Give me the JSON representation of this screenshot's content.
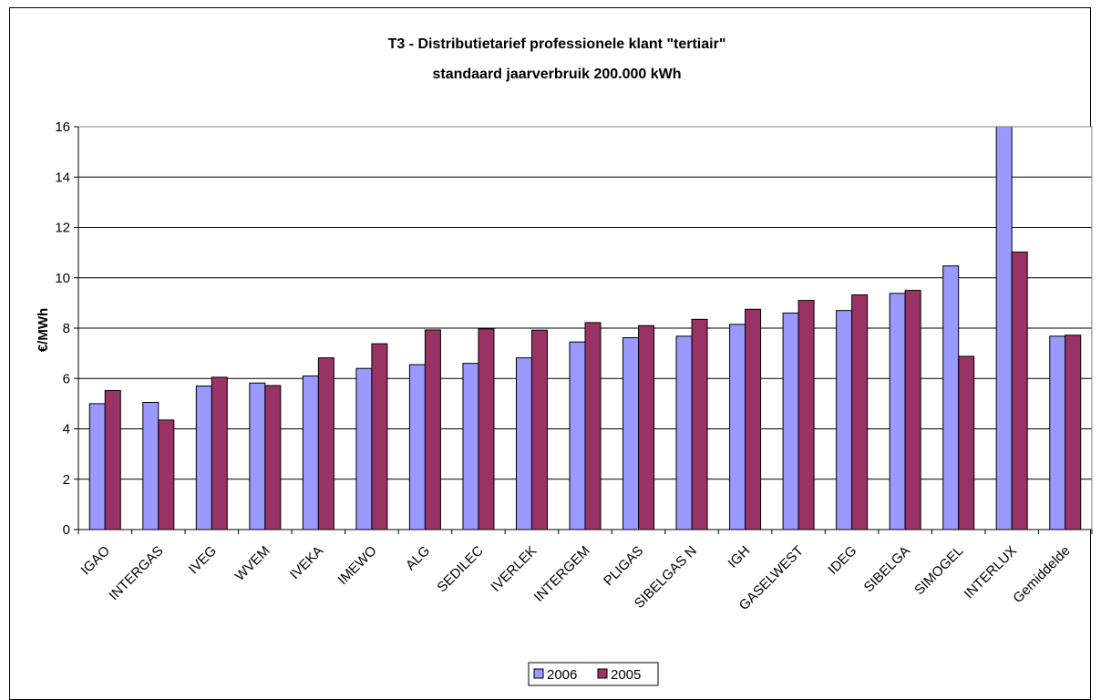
{
  "chart_data": {
    "type": "bar",
    "title": "T3 - Distributietarief professionele klant  \"tertiair\"",
    "subtitle": "standaard jaarverbruik 200.000 kWh",
    "ylabel": "€/MWh",
    "xlabel": "",
    "ylim": [
      0,
      16
    ],
    "yticks": [
      "0",
      "2",
      "4",
      "6",
      "8",
      "10",
      "12",
      "14",
      "16"
    ],
    "grid": true,
    "legend_position": "bottom",
    "categories": [
      "IGAO",
      "INTERGAS",
      "IVEG",
      "WVEM",
      "IVEKA",
      "IMEWO",
      "ALG",
      "SEDILEC",
      "IVERLEK",
      "INTERGEM",
      "PLIGAS",
      "SIBELGAS N",
      "IGH",
      "GASELWEST",
      "IDEG",
      "SIBELGA",
      "SIMOGEL",
      "INTERLUX",
      "Gemiddelde"
    ],
    "series": [
      {
        "name": "2006",
        "color": "#9999FF",
        "values": [
          5.0,
          5.05,
          5.7,
          5.82,
          6.1,
          6.4,
          6.55,
          6.6,
          6.82,
          7.45,
          7.62,
          7.68,
          8.15,
          8.6,
          8.7,
          9.38,
          10.47,
          16.1,
          7.68
        ]
      },
      {
        "name": "2005",
        "color": "#993366",
        "values": [
          5.52,
          4.35,
          6.05,
          5.72,
          6.82,
          7.38,
          7.93,
          7.97,
          7.92,
          8.22,
          8.1,
          8.35,
          8.75,
          9.1,
          9.32,
          9.5,
          6.88,
          11.02,
          7.72
        ]
      }
    ]
  }
}
